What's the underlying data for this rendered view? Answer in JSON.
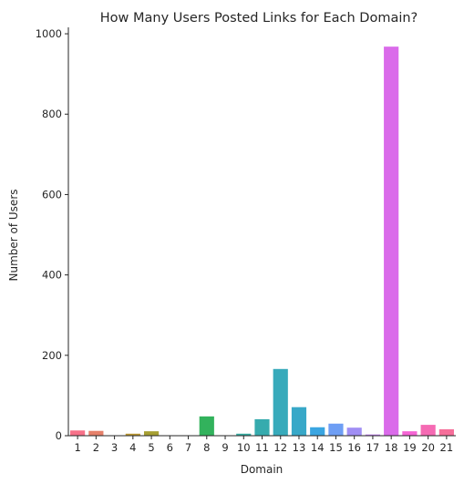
{
  "chart_data": {
    "type": "bar",
    "title": "How Many Users Posted Links for Each Domain?",
    "xlabel": "Domain",
    "ylabel": "Number of Users",
    "categories": [
      "1",
      "2",
      "3",
      "4",
      "5",
      "6",
      "7",
      "8",
      "9",
      "10",
      "11",
      "12",
      "13",
      "14",
      "15",
      "16",
      "17",
      "18",
      "19",
      "20",
      "21"
    ],
    "values": [
      13,
      12,
      1,
      5,
      11,
      0,
      0,
      48,
      0,
      5,
      41,
      166,
      71,
      21,
      30,
      20,
      3,
      968,
      11,
      27,
      16
    ],
    "colors": [
      "#f77189",
      "#e5806a",
      "#d18d32",
      "#bb9832",
      "#a69f32",
      "#8ea731",
      "#6aac31",
      "#32b25c",
      "#34ae8f",
      "#35aca1",
      "#36abae",
      "#37aabb",
      "#38a8c8",
      "#3aa5e1",
      "#6e9ef4",
      "#a08ef4",
      "#c27cf4",
      "#da6bea",
      "#f564d4",
      "#f56ab3",
      "#f66e9a"
    ],
    "yticks": [
      0,
      200,
      400,
      600,
      800,
      1000
    ],
    "ylim": [
      0,
      1016
    ],
    "grid": false,
    "legend": "none"
  }
}
